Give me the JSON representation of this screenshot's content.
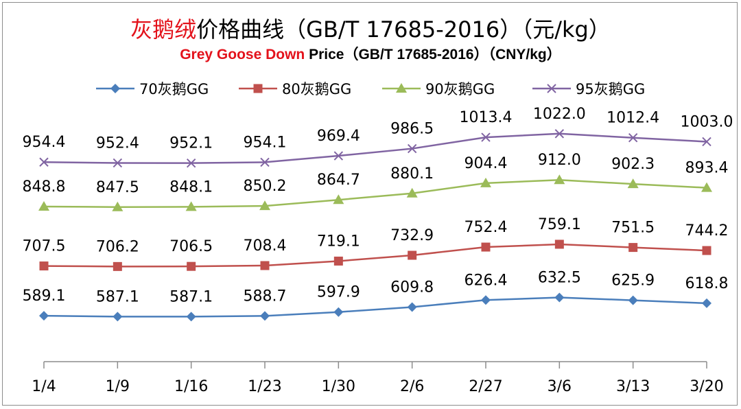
{
  "title": {
    "cn_highlight": "灰鹅绒",
    "cn_rest": "价格曲线（GB/T 17685-2016）（元/kg）",
    "en_highlight": "Grey Goose Down",
    "en_rest": " Price（GB/T 17685-2016）（CNY/kg）"
  },
  "chart_data": {
    "type": "line",
    "categories": [
      "1/4",
      "1/9",
      "1/16",
      "1/23",
      "1/30",
      "2/6",
      "2/27",
      "3/6",
      "3/13",
      "3/20"
    ],
    "ylim": [
      480,
      1100
    ],
    "series": [
      {
        "name": "70灰鹅GG",
        "color": "#4a7ebb",
        "marker": "diamond",
        "values": [
          589.1,
          587.1,
          587.1,
          588.7,
          597.9,
          609.8,
          626.4,
          632.5,
          625.9,
          618.8
        ]
      },
      {
        "name": "80灰鹅GG",
        "color": "#c0504d",
        "marker": "square",
        "values": [
          707.5,
          706.2,
          706.5,
          708.4,
          719.1,
          732.9,
          752.4,
          759.1,
          751.5,
          744.2
        ]
      },
      {
        "name": "90灰鹅GG",
        "color": "#9bbb59",
        "marker": "triangle",
        "values": [
          848.8,
          847.5,
          848.1,
          850.2,
          864.7,
          880.1,
          904.4,
          912.0,
          902.3,
          893.4
        ]
      },
      {
        "name": "95灰鹅GG",
        "color": "#8064a2",
        "marker": "x",
        "values": [
          954.4,
          952.4,
          952.1,
          954.1,
          969.4,
          986.5,
          1013.4,
          1022.0,
          1012.4,
          1003.0
        ]
      }
    ]
  }
}
